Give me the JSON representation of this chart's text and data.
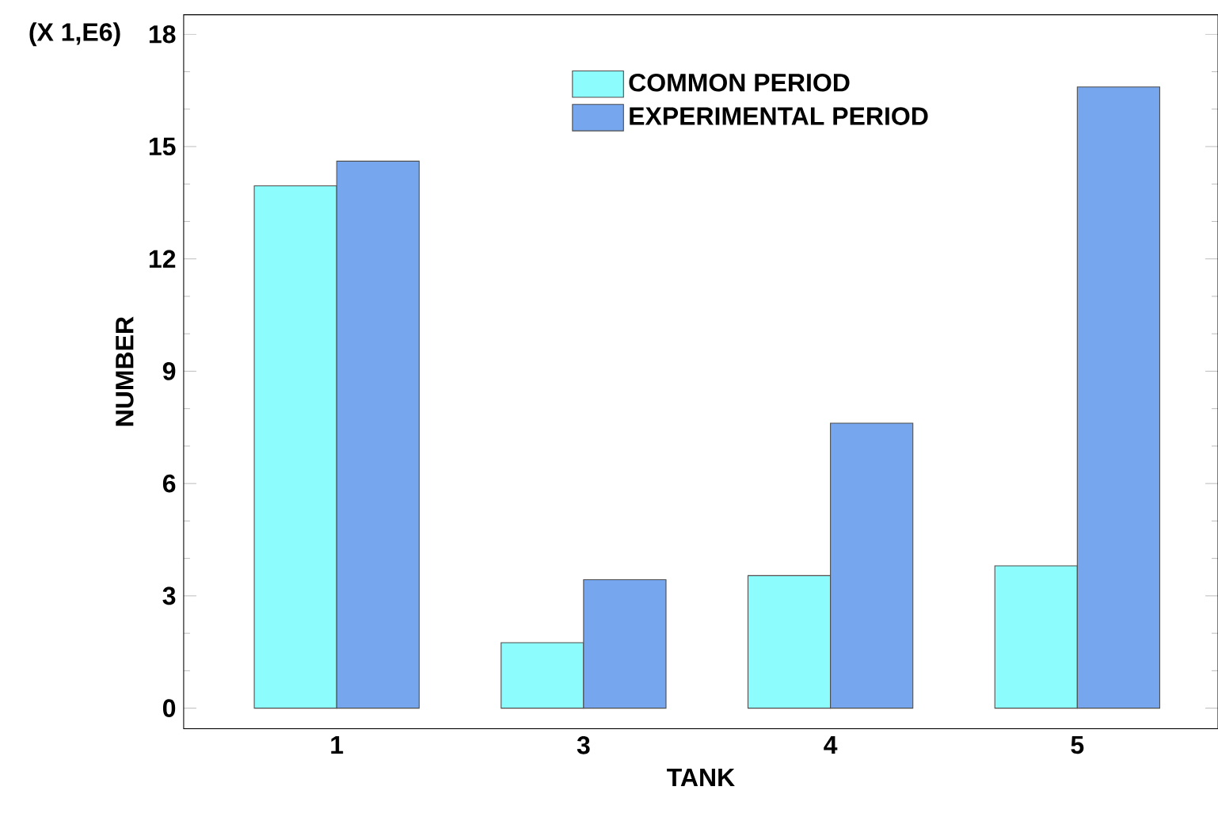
{
  "chart_data": {
    "type": "bar",
    "xlabel": "TANK",
    "ylabel": "NUMBER",
    "annotations": [
      "(X 1,E6)"
    ],
    "categories": [
      "1",
      "3",
      "4",
      "5"
    ],
    "series": [
      {
        "name": "COMMON PERIOD",
        "color": "#8cfcfc",
        "values": [
          13.95,
          1.75,
          3.54,
          3.8
        ]
      },
      {
        "name": "EXPERIMENTAL PERIOD",
        "color": "#76a6ee",
        "values": [
          14.61,
          3.43,
          7.61,
          16.59
        ]
      }
    ],
    "ylim": [
      -0.55,
      18.52
    ],
    "yticks": [
      0,
      3,
      6,
      9,
      12,
      15,
      18
    ],
    "grid": false,
    "legend": "top"
  }
}
